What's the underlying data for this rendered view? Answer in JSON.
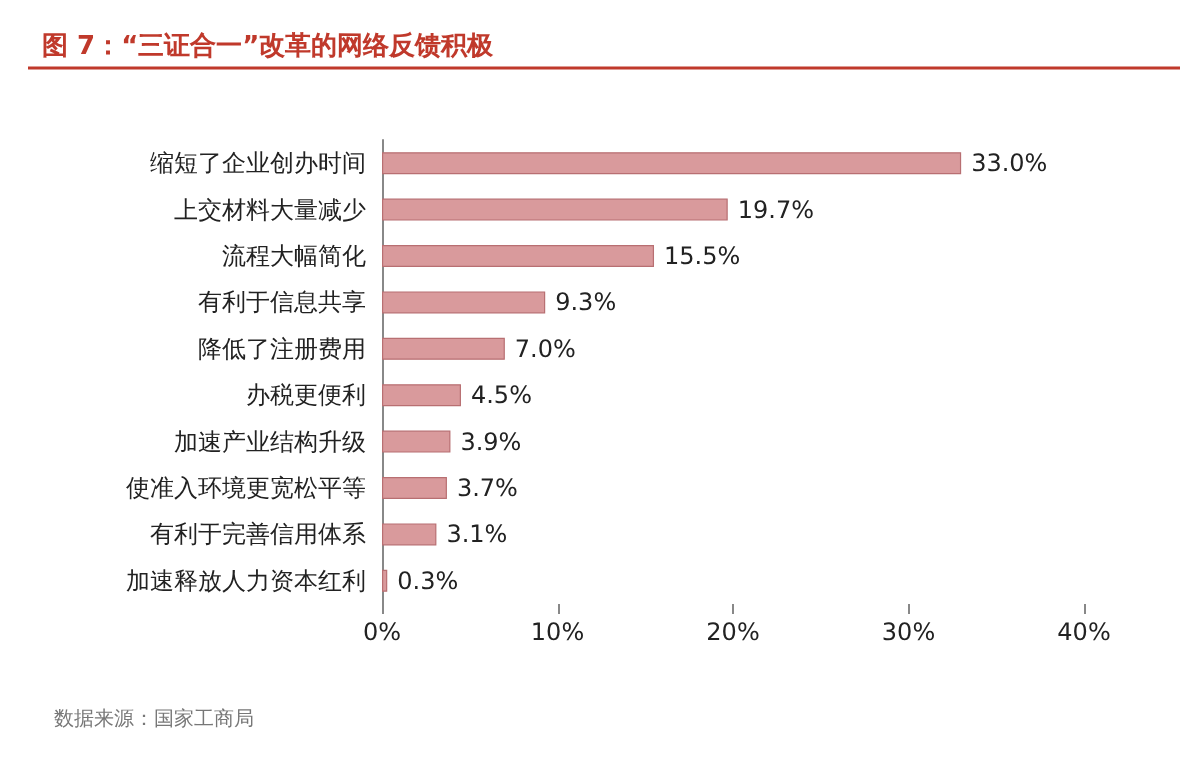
{
  "chart_data": {
    "type": "bar",
    "orientation": "horizontal",
    "title": "图 7：“三证合一”改革的网络反馈积极",
    "categories": [
      "缩短了企业创办时间",
      "上交材料大量减少",
      "流程大幅简化",
      "有利于信息共享",
      "降低了注册费用",
      "办税更便利",
      "加速产业结构升级",
      "使准入环境更宽松平等",
      "有利于完善信用体系",
      "加速释放人力资本红利"
    ],
    "values": [
      33.0,
      19.7,
      15.5,
      9.3,
      7.0,
      4.5,
      3.9,
      3.7,
      3.1,
      0.3
    ],
    "value_labels": [
      "33.0%",
      "19.7%",
      "15.5%",
      "9.3%",
      "7.0%",
      "4.5%",
      "3.9%",
      "3.7%",
      "3.1%",
      "0.3%"
    ],
    "color": "#d99a9c",
    "xlim": [
      0,
      40
    ],
    "xticks": [
      {
        "value": 0,
        "label": "0%"
      },
      {
        "value": 10,
        "label": "10%"
      },
      {
        "value": 20,
        "label": "20%"
      },
      {
        "value": 30,
        "label": "30%"
      },
      {
        "value": 40,
        "label": "40%"
      }
    ],
    "grid": false,
    "annotations": [
      "数据来源：国家工商局"
    ]
  }
}
